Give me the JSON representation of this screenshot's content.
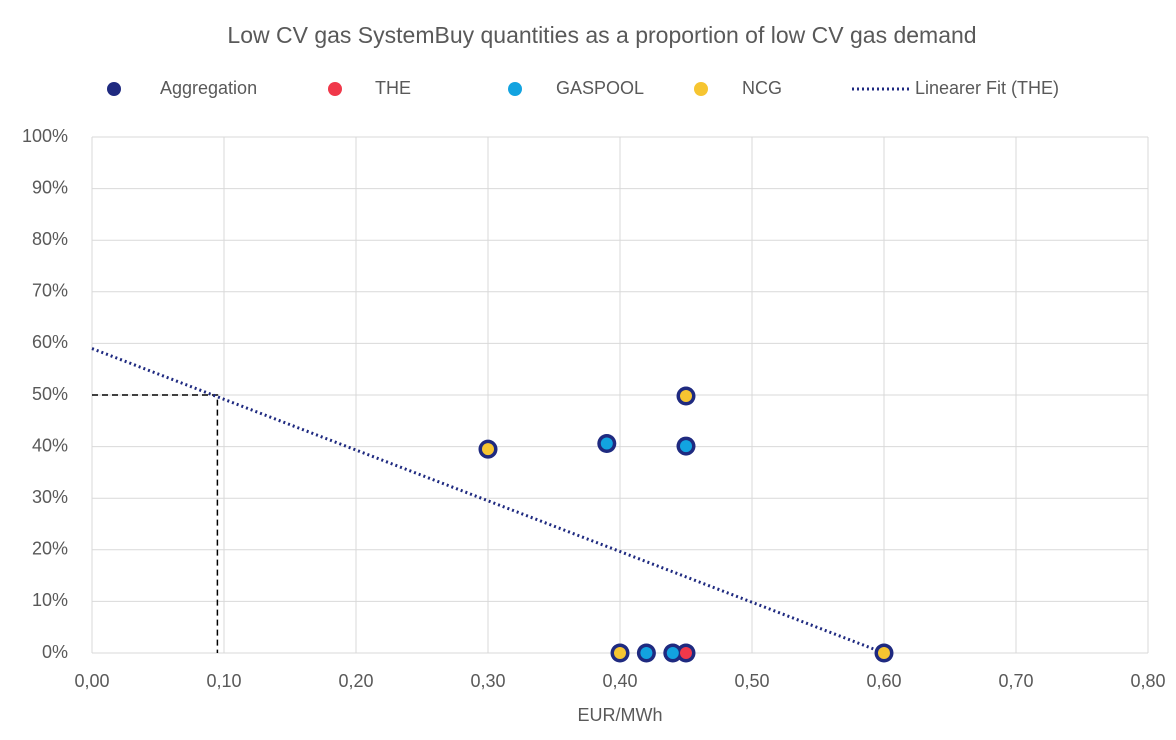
{
  "chart_data": {
    "type": "scatter",
    "title": "Low CV gas SystemBuy quantities as a proportion of low CV gas demand",
    "x_label": "EUR/MWh",
    "xlim": [
      0,
      0.8
    ],
    "ylim": [
      0,
      100
    ],
    "xticks": [
      {
        "value": 0,
        "label": "0,00"
      },
      {
        "value": 0.1,
        "label": "0,10"
      },
      {
        "value": 0.2,
        "label": "0,20"
      },
      {
        "value": 0.3,
        "label": "0,30"
      },
      {
        "value": 0.4,
        "label": "0,40"
      },
      {
        "value": 0.5,
        "label": "0,50"
      },
      {
        "value": 0.6,
        "label": "0,60"
      },
      {
        "value": 0.7,
        "label": "0,70"
      },
      {
        "value": 0.8,
        "label": "0,80"
      }
    ],
    "yticks": [
      {
        "value": 0,
        "label": "0%"
      },
      {
        "value": 10,
        "label": "10%"
      },
      {
        "value": 20,
        "label": "20%"
      },
      {
        "value": 30,
        "label": "30%"
      },
      {
        "value": 40,
        "label": "40%"
      },
      {
        "value": 50,
        "label": "50%"
      },
      {
        "value": 60,
        "label": "60%"
      },
      {
        "value": 70,
        "label": "70%"
      },
      {
        "value": 80,
        "label": "80%"
      },
      {
        "value": 90,
        "label": "90%"
      },
      {
        "value": 100,
        "label": "100%"
      }
    ],
    "grid": true,
    "legend": "top",
    "series": [
      {
        "name": "Aggregation",
        "color": "#1f2a80",
        "x": [
          0.3,
          0.39,
          0.45,
          0.45,
          0.4,
          0.42,
          0.44,
          0.45,
          0.6
        ],
        "values": [
          39.5,
          40.6,
          49.8,
          40.1,
          0,
          0,
          0,
          0,
          0
        ]
      },
      {
        "name": "THE",
        "color": "#f0384a",
        "x": [
          0.45
        ],
        "values": [
          0
        ]
      },
      {
        "name": "GASPOOL",
        "color": "#12a3e0",
        "x": [
          0.39,
          0.45,
          0.42,
          0.44
        ],
        "values": [
          40.6,
          40.1,
          0,
          0
        ]
      },
      {
        "name": "NCG",
        "color": "#f6c531",
        "x": [
          0.3,
          0.45,
          0.4,
          0.6
        ],
        "values": [
          39.5,
          49.8,
          0,
          0
        ]
      }
    ],
    "fit": {
      "name": "Linearer Fit (THE)",
      "color": "#1f2a80",
      "x": [
        0,
        0.6
      ],
      "values": [
        59,
        0
      ]
    },
    "reference_point": {
      "x": 0.095,
      "y": 50
    }
  }
}
